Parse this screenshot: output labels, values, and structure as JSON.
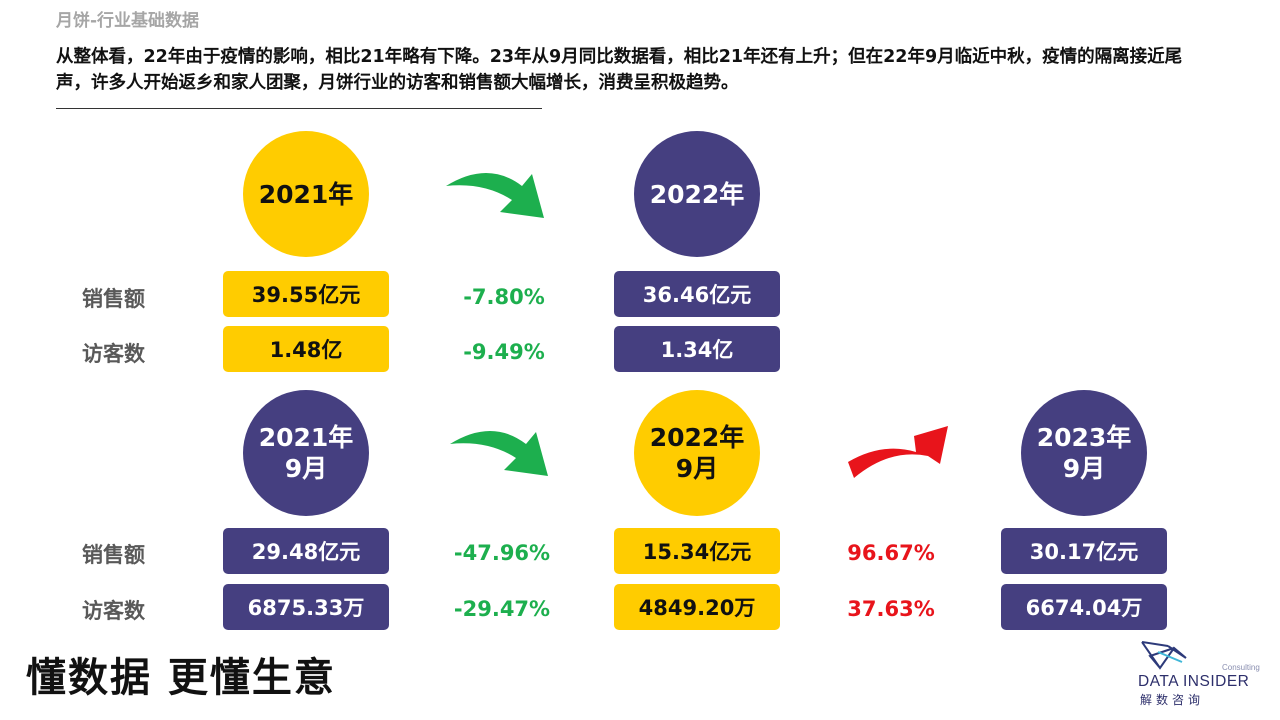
{
  "header": {
    "title": "月饼-行业基础数据",
    "summary": "从整体看，22年由于疫情的影响，相比21年略有下降。23年从9月同比数据看，相比21年还有上升；但在22年9月临近中秋，疫情的隔离接近尾声，许多人开始返乡和家人团聚，月饼行业的访客和销售额大幅增长，消费呈积极趋势。"
  },
  "labels": {
    "sales": "销售额",
    "visitors": "访客数"
  },
  "annual": {
    "y2021": {
      "label": "2021年",
      "sales": "39.55亿元",
      "visitors": "1.48亿"
    },
    "y2022": {
      "label": "2022年",
      "sales": "36.46亿元",
      "visitors": "1.34亿"
    },
    "change": {
      "sales": "-7.80%",
      "visitors": "-9.49%"
    }
  },
  "september": {
    "y2021": {
      "label": "2021年\n9月",
      "sales": "29.48亿元",
      "visitors": "6875.33万"
    },
    "y2022": {
      "label": "2022年\n9月",
      "sales": "15.34亿元",
      "visitors": "4849.20万"
    },
    "y2023": {
      "label": "2023年\n9月",
      "sales": "30.17亿元",
      "visitors": "6674.04万"
    },
    "change_21_22": {
      "sales": "-47.96%",
      "visitors": "-29.47%"
    },
    "change_22_23": {
      "sales": "96.67%",
      "visitors": "37.63%"
    }
  },
  "footer": {
    "slogan": "懂数据 更懂生意",
    "logo_name": "DATA INSIDER",
    "logo_sub": "解数咨询",
    "logo_tag": "Consulting"
  },
  "colors": {
    "yellow": "#ffcc00",
    "navy": "#453f80",
    "green": "#1daf4e",
    "red": "#e8141b"
  },
  "icons": {
    "down_arrow": "curved-arrow-down-green",
    "up_arrow": "curved-arrow-up-red"
  }
}
